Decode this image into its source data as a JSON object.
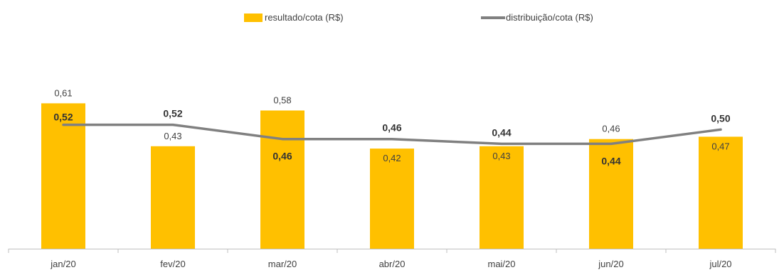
{
  "chart_data": {
    "type": "bar",
    "categories": [
      "jan/20",
      "fev/20",
      "mar/20",
      "abr/20",
      "mai/20",
      "jun/20",
      "jul/20"
    ],
    "series": [
      {
        "name": "resultado/cota (R$)",
        "kind": "bar",
        "color": "#FFC000",
        "values": [
          0.61,
          0.43,
          0.58,
          0.42,
          0.43,
          0.46,
          0.47
        ],
        "labels": [
          "0,61",
          "0,43",
          "0,58",
          "0,42",
          "0,43",
          "0,46",
          "0,47"
        ]
      },
      {
        "name": "distribuição/cota (R$)",
        "kind": "line",
        "color": "#808080",
        "values": [
          0.52,
          0.52,
          0.46,
          0.46,
          0.44,
          0.44,
          0.5
        ],
        "labels": [
          "0,52",
          "0,52",
          "0,46",
          "0,46",
          "0,44",
          "0,44",
          "0,50"
        ]
      }
    ],
    "ylim": [
      0,
      0.76
    ],
    "grid": false,
    "legend_position": "top-center"
  }
}
